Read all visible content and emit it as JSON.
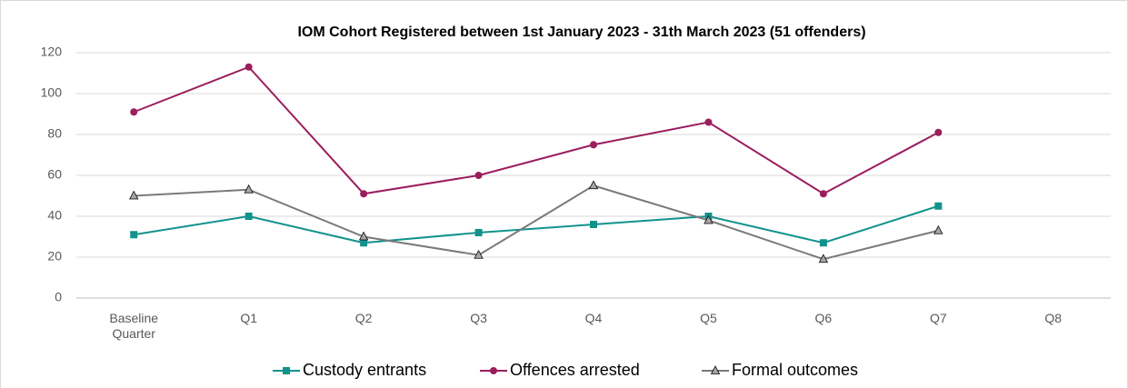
{
  "chart_data": {
    "type": "line",
    "title": "IOM Cohort Registered between 1st January 2023 - 31th March 2023 (51 offenders)",
    "categories": [
      "Baseline Quarter",
      "Q1",
      "Q2",
      "Q3",
      "Q4",
      "Q5",
      "Q6",
      "Q7",
      "Q8"
    ],
    "series": [
      {
        "name": "Custody entrants",
        "color": "#12928c",
        "marker": "square",
        "values": [
          31,
          40,
          27,
          32,
          36,
          40,
          27,
          45,
          null
        ]
      },
      {
        "name": "Offences arrested",
        "color": "#9b1d5c",
        "marker": "circle",
        "values": [
          91,
          113,
          51,
          60,
          75,
          86,
          51,
          81,
          null
        ]
      },
      {
        "name": "Formal outcomes",
        "color": "#7a7a7a",
        "marker": "triangle",
        "values": [
          50,
          53,
          30,
          21,
          55,
          38,
          19,
          33,
          null
        ]
      }
    ],
    "ylim": [
      0,
      120
    ],
    "yticks": [
      0,
      20,
      40,
      60,
      80,
      100,
      120
    ],
    "grid": true,
    "legend": "bottom"
  }
}
